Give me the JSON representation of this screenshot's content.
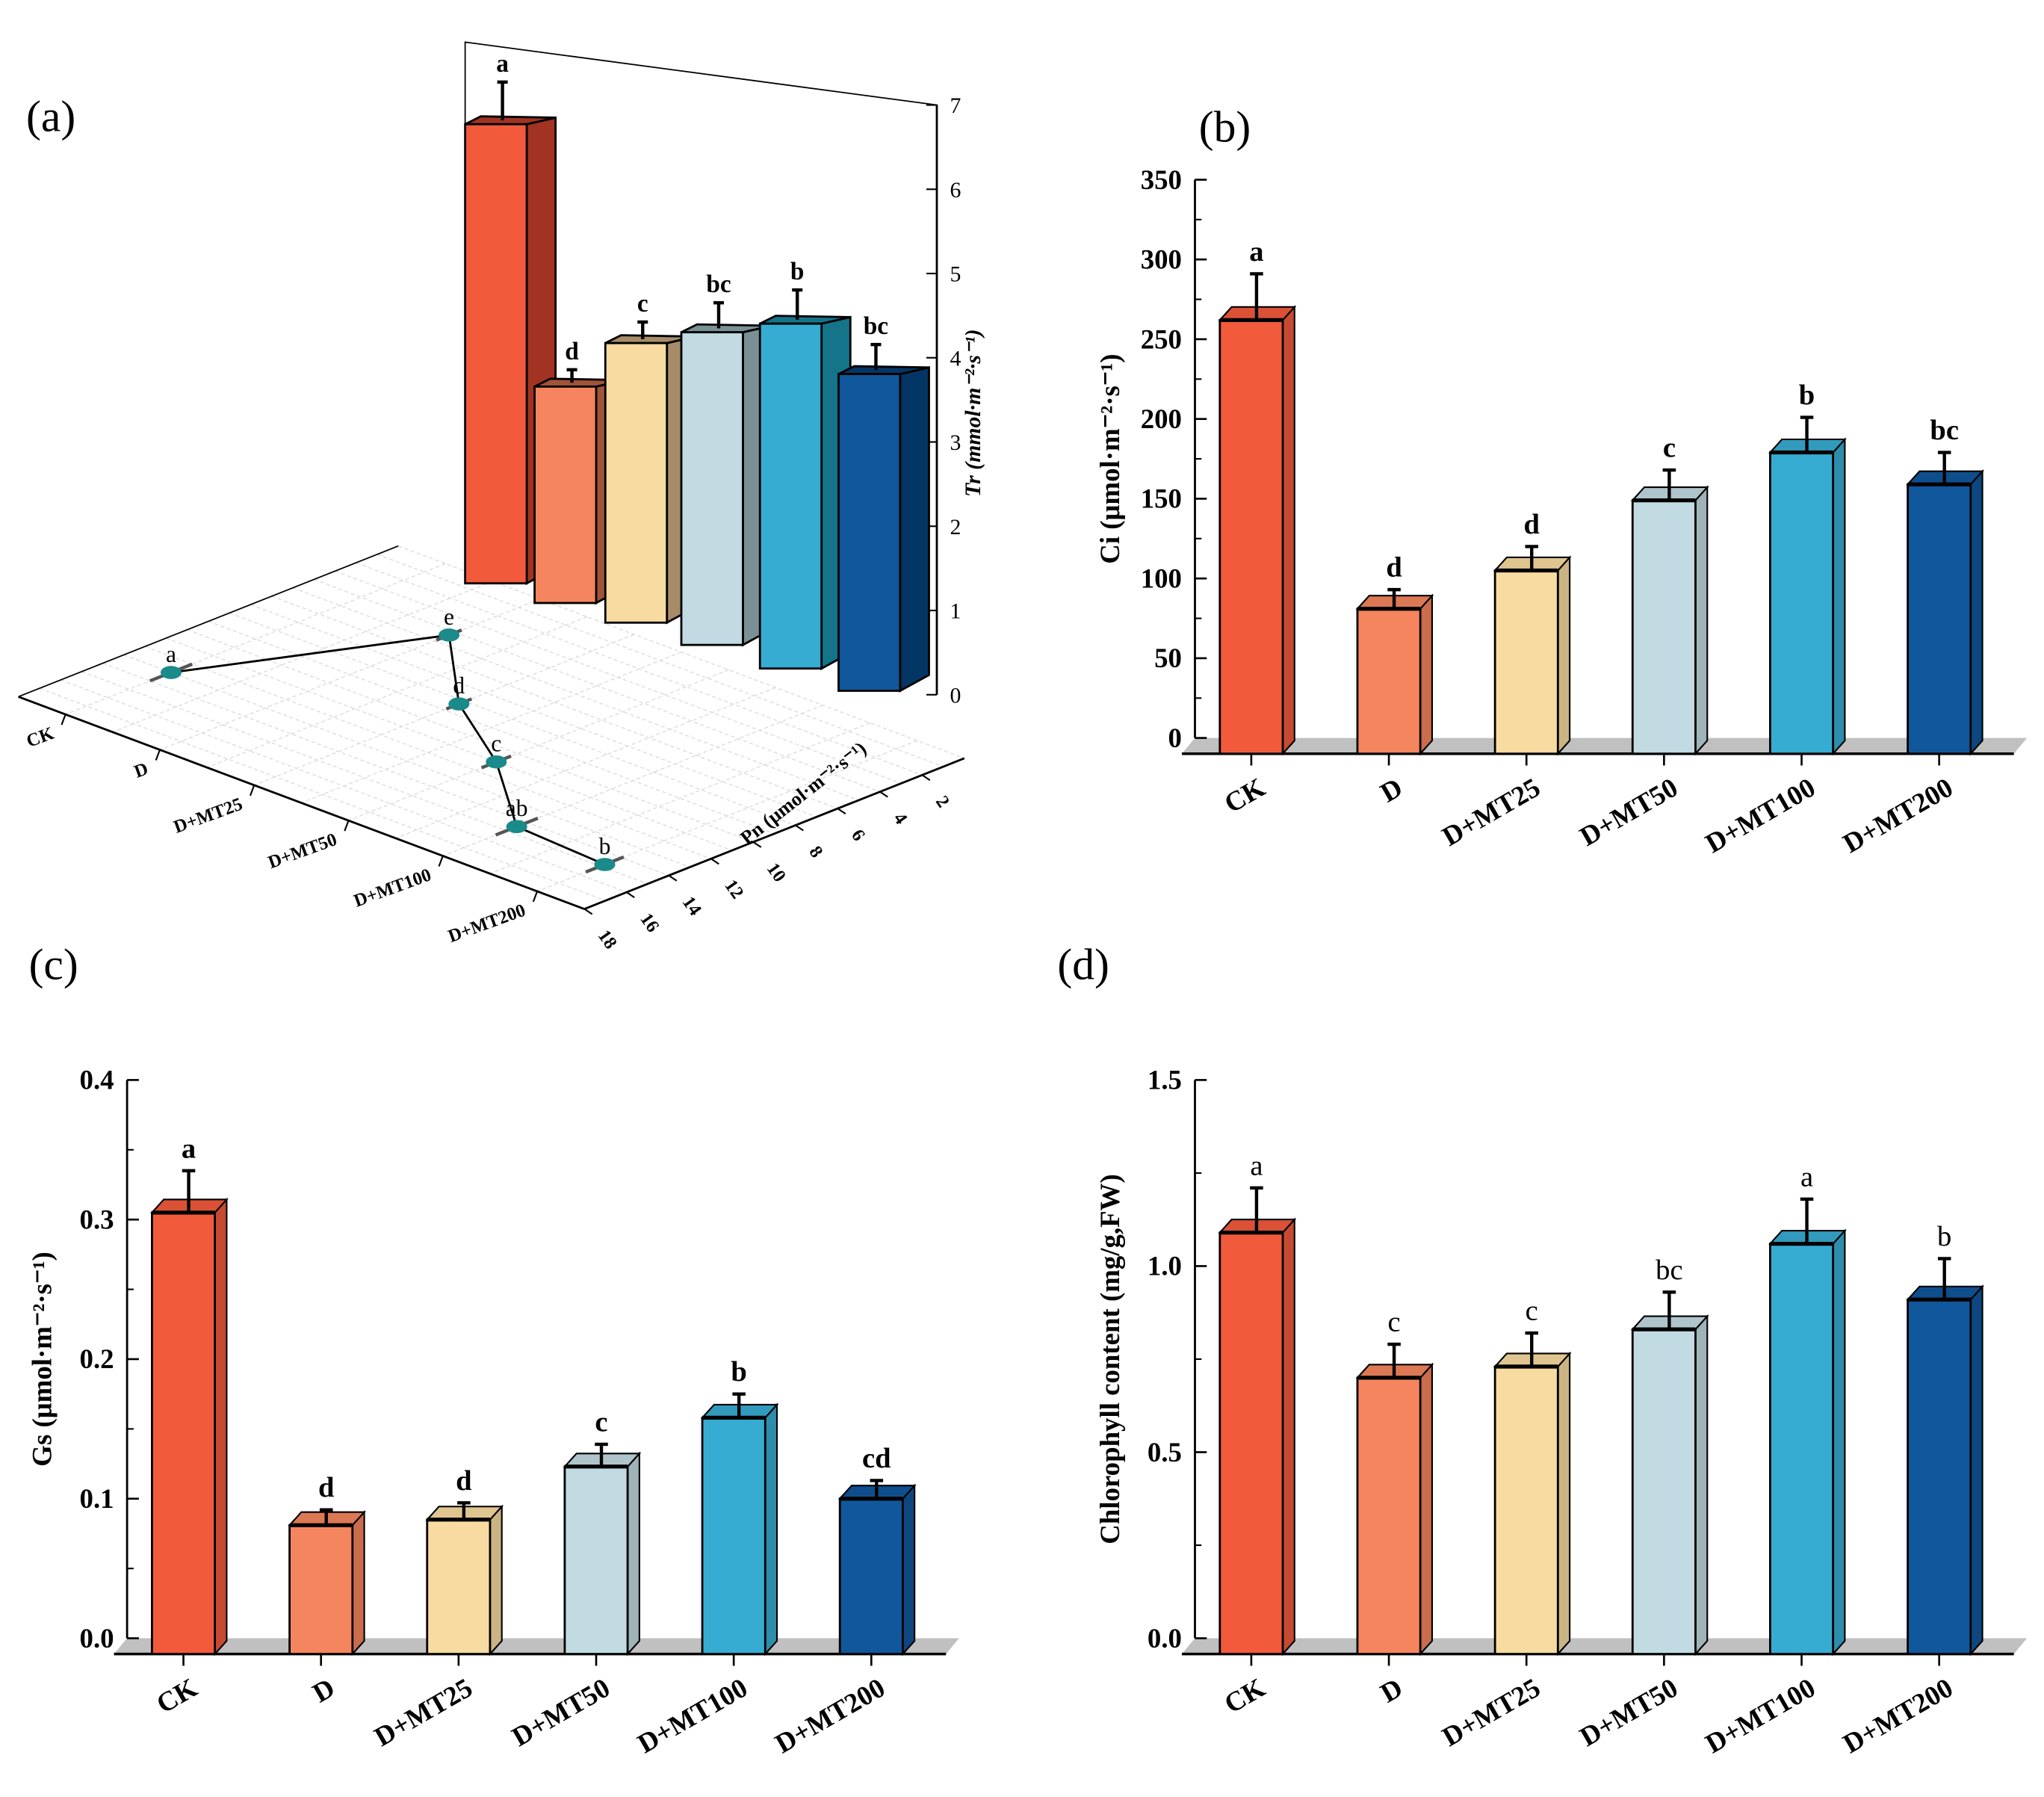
{
  "categories": [
    "CK",
    "D",
    "D+MT25",
    "D+MT50",
    "D+MT100",
    "D+MT200"
  ],
  "colors": {
    "front": [
      "#F25A3C",
      "#F5855E",
      "#F8DBA0",
      "#C2DBE2",
      "#37ACD2",
      "#11579B"
    ],
    "side": [
      "#A23322",
      "#A05438",
      "#A68C68",
      "#7A9095",
      "#13748A",
      "#043665"
    ],
    "floor": "#C0C0C0",
    "point": "#1A8A8A"
  },
  "chart_data": [
    {
      "panel": "(a)",
      "type": "3d-bar-and-line",
      "bar_series": {
        "ylabel": "Tr (mmol·m⁻²·s⁻¹)",
        "ylim": [
          0,
          7
        ],
        "ticks": [
          "0",
          "1",
          "2",
          "3",
          "4",
          "5",
          "6",
          "7"
        ],
        "values": [
          5.45,
          2.6,
          3.4,
          3.85,
          4.3,
          4.0
        ],
        "errors": [
          0.5,
          0.2,
          0.25,
          0.35,
          0.4,
          0.35
        ],
        "letters": [
          "a",
          "d",
          "c",
          "bc",
          "b",
          "bc"
        ]
      },
      "line_series": {
        "axis_label": "Pn (μmol·m⁻²·s⁻¹)",
        "lim": [
          0,
          18
        ],
        "ticks": [
          "2",
          "4",
          "6",
          "8",
          "10",
          "12",
          "14",
          "16",
          "18"
        ],
        "values": [
          13.0,
          4.3,
          8.3,
          11.0,
          14.5,
          14.8
        ],
        "errors": [
          1.0,
          0.6,
          0.6,
          0.7,
          1.0,
          0.9
        ],
        "letters": [
          "a",
          "e",
          "d",
          "c",
          "ab",
          "b"
        ]
      },
      "grid": true
    },
    {
      "panel": "(b)",
      "type": "bar",
      "ylabel": "Ci (μmol·m⁻²·s⁻¹)",
      "ylim": [
        0,
        350
      ],
      "ticks": [
        "0",
        "50",
        "100",
        "150",
        "200",
        "250",
        "300",
        "350"
      ],
      "values": [
        262,
        81,
        105,
        149,
        179,
        159
      ],
      "errors": [
        29,
        12,
        15,
        19,
        22,
        20
      ],
      "letters": [
        "a",
        "d",
        "d",
        "c",
        "b",
        "bc"
      ],
      "letter_bold": true
    },
    {
      "panel": "(c)",
      "type": "bar",
      "ylabel": "Gs (μmol·m⁻²·s⁻¹)",
      "ylim": [
        0,
        0.4
      ],
      "ticks": [
        "0.0",
        "0.1",
        "0.2",
        "0.3",
        "0.4"
      ],
      "values": [
        0.305,
        0.081,
        0.085,
        0.123,
        0.158,
        0.1
      ],
      "errors": [
        0.03,
        0.011,
        0.012,
        0.016,
        0.017,
        0.013
      ],
      "letters": [
        "a",
        "d",
        "d",
        "c",
        "b",
        "cd"
      ],
      "letter_bold": true
    },
    {
      "panel": "(d)",
      "type": "bar",
      "ylabel": "Chlorophyll content  (mg/g,FW)",
      "ylim": [
        0,
        1.5
      ],
      "ticks": [
        "0.0",
        "0.5",
        "1.0",
        "1.5"
      ],
      "values": [
        1.09,
        0.7,
        0.73,
        0.83,
        1.06,
        0.91
      ],
      "errors": [
        0.12,
        0.09,
        0.09,
        0.1,
        0.12,
        0.11
      ],
      "letters": [
        "a",
        "c",
        "c",
        "bc",
        "a",
        "b"
      ],
      "letter_bold": false
    }
  ]
}
